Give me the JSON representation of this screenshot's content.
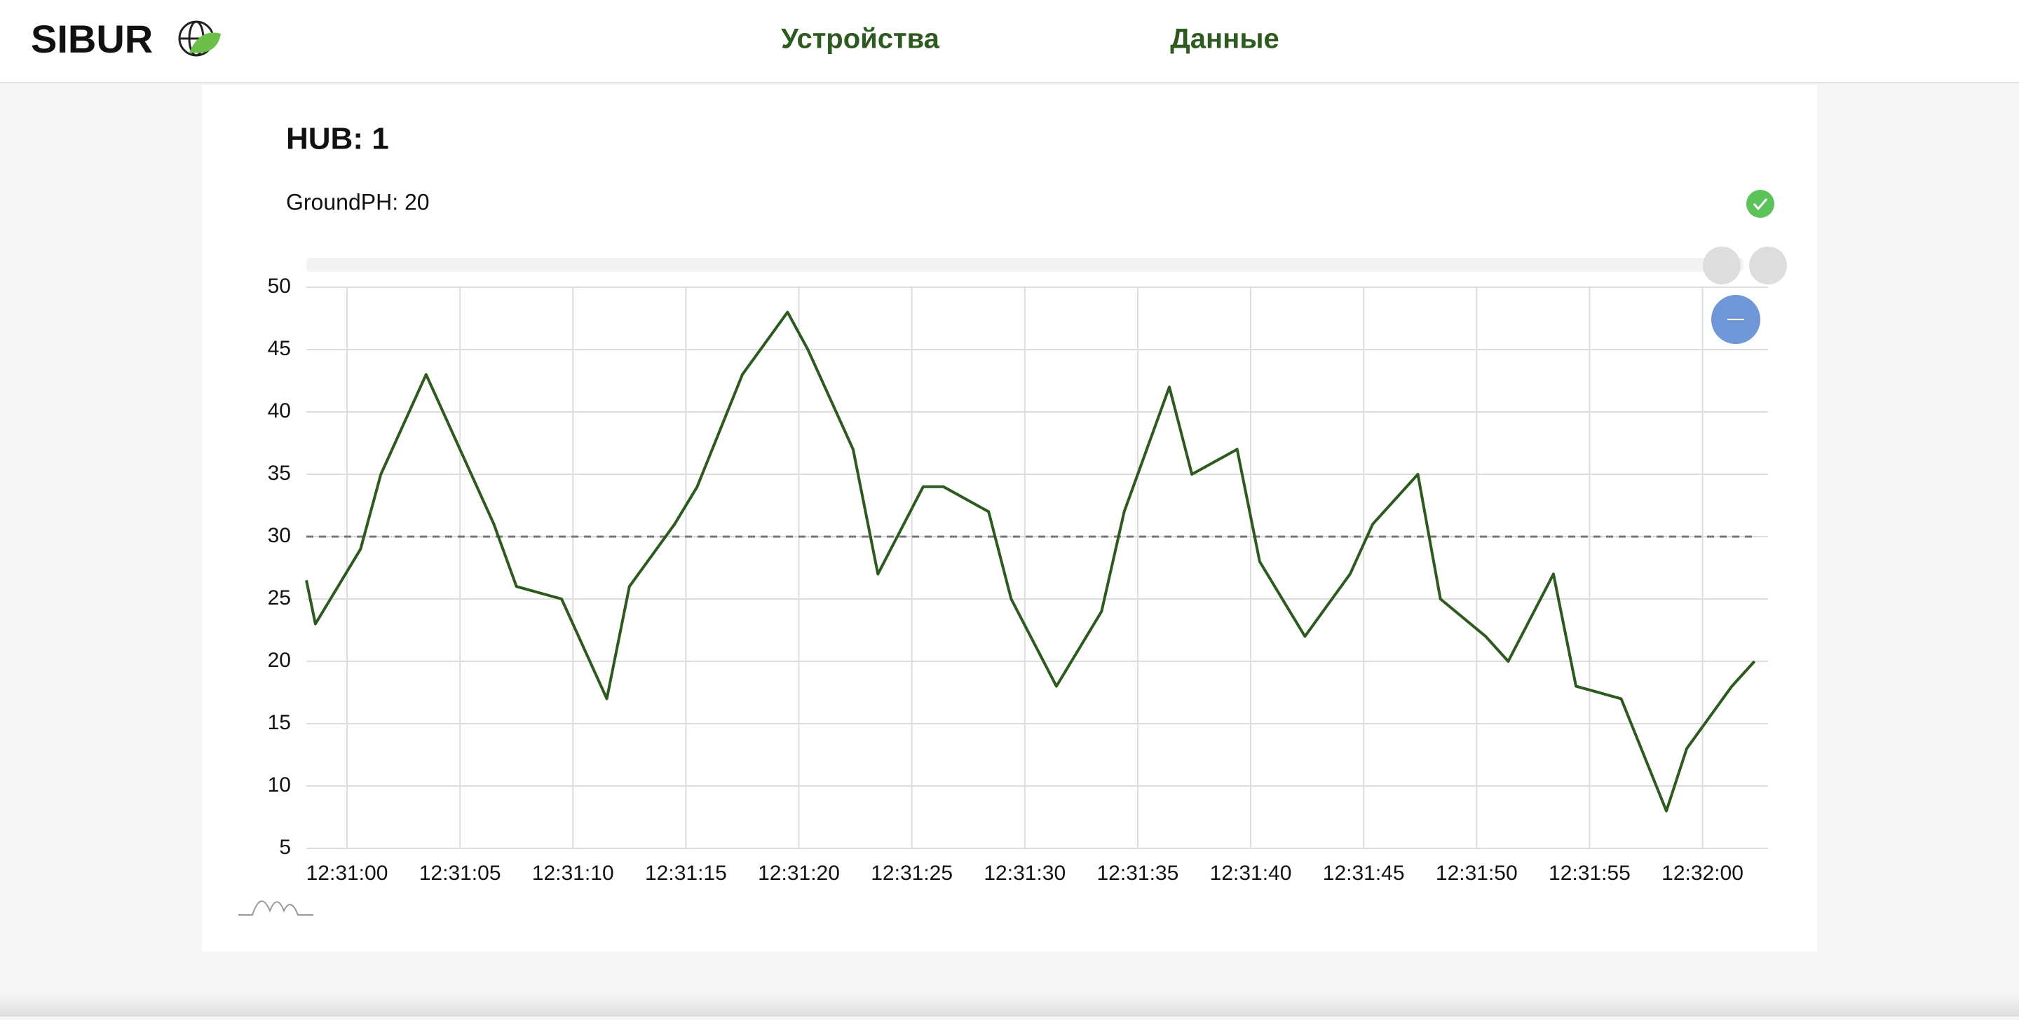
{
  "header": {
    "logo": "SIBUR",
    "nav": [
      "Устройства",
      "Данные"
    ]
  },
  "hub": {
    "title": "HUB: 1",
    "sensor": "GroundPH: 20"
  },
  "chart_data": {
    "type": "line",
    "x": [
      "12:30:58.2",
      "12:30:58.6",
      "12:31:00.6",
      "12:31:01.5",
      "12:31:03.5",
      "12:31:06.5",
      "12:31:07.5",
      "12:31:09.5",
      "12:31:11.5",
      "12:31:12.5",
      "12:31:14.5",
      "12:31:15.5",
      "12:31:17.5",
      "12:31:19.5",
      "12:31:20.4",
      "12:31:22.4",
      "12:31:23.5",
      "12:31:25.5",
      "12:31:26.4",
      "12:31:28.4",
      "12:31:29.4",
      "12:31:31.4",
      "12:31:33.4",
      "12:31:34.4",
      "12:31:36.4",
      "12:31:37.4",
      "12:31:39.4",
      "12:31:40.4",
      "12:31:42.4",
      "12:31:44.4",
      "12:31:45.4",
      "12:31:47.4",
      "12:31:48.4",
      "12:31:50.4",
      "12:31:51.4",
      "12:31:53.4",
      "12:31:54.4",
      "12:31:56.4",
      "12:31:58.4",
      "12:31:59.3",
      "12:32:01.3",
      "12:32:02.3"
    ],
    "series": [
      {
        "color": "#2d5a1e",
        "values": [
          26.5,
          23,
          29,
          35,
          43,
          31,
          26,
          25,
          17,
          26,
          31,
          34,
          43,
          48,
          45,
          37,
          27,
          34,
          34,
          32,
          25,
          18,
          24,
          32,
          42,
          35,
          37,
          28,
          22,
          27,
          31,
          35,
          25,
          22,
          20,
          27,
          18,
          17,
          8,
          13,
          18,
          20
        ]
      }
    ],
    "threshold": 30,
    "xlim": [
      "12:30:58.2",
      "12:32:02.9"
    ],
    "xticks": [
      "12:31:00",
      "12:31:05",
      "12:31:10",
      "12:31:15",
      "12:31:20",
      "12:31:25",
      "12:31:30",
      "12:31:35",
      "12:31:40",
      "12:31:45",
      "12:31:50",
      "12:31:55",
      "12:32:00"
    ],
    "ylim": [
      5,
      50
    ],
    "yticks": [
      5,
      10,
      15,
      20,
      25,
      30,
      35,
      40,
      45,
      50
    ],
    "grid": true
  }
}
